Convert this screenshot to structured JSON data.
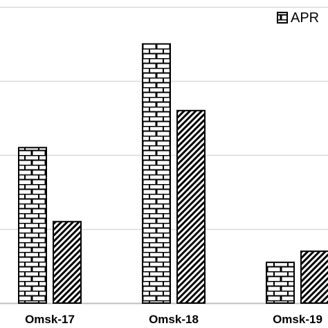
{
  "chart_data": {
    "type": "bar",
    "title": "",
    "xlabel": "",
    "ylabel": "",
    "categories": [
      "Omsk-17",
      "Omsk-18",
      "Omsk-19"
    ],
    "series": [
      {
        "name": "APR",
        "pattern": "brick",
        "values": [
          2.1,
          3.5,
          0.55
        ]
      },
      {
        "name": "",
        "pattern": "diagonal-stripes",
        "values": [
          1.1,
          2.6,
          0.7
        ]
      }
    ],
    "ylim": [
      0,
      4.0
    ],
    "grid": true,
    "legend_placement": "top-right",
    "colors": {
      "stroke": "#000000",
      "fill": "#ffffff",
      "grid": "#d9d9d9",
      "axis": "#bfbfbf"
    }
  }
}
